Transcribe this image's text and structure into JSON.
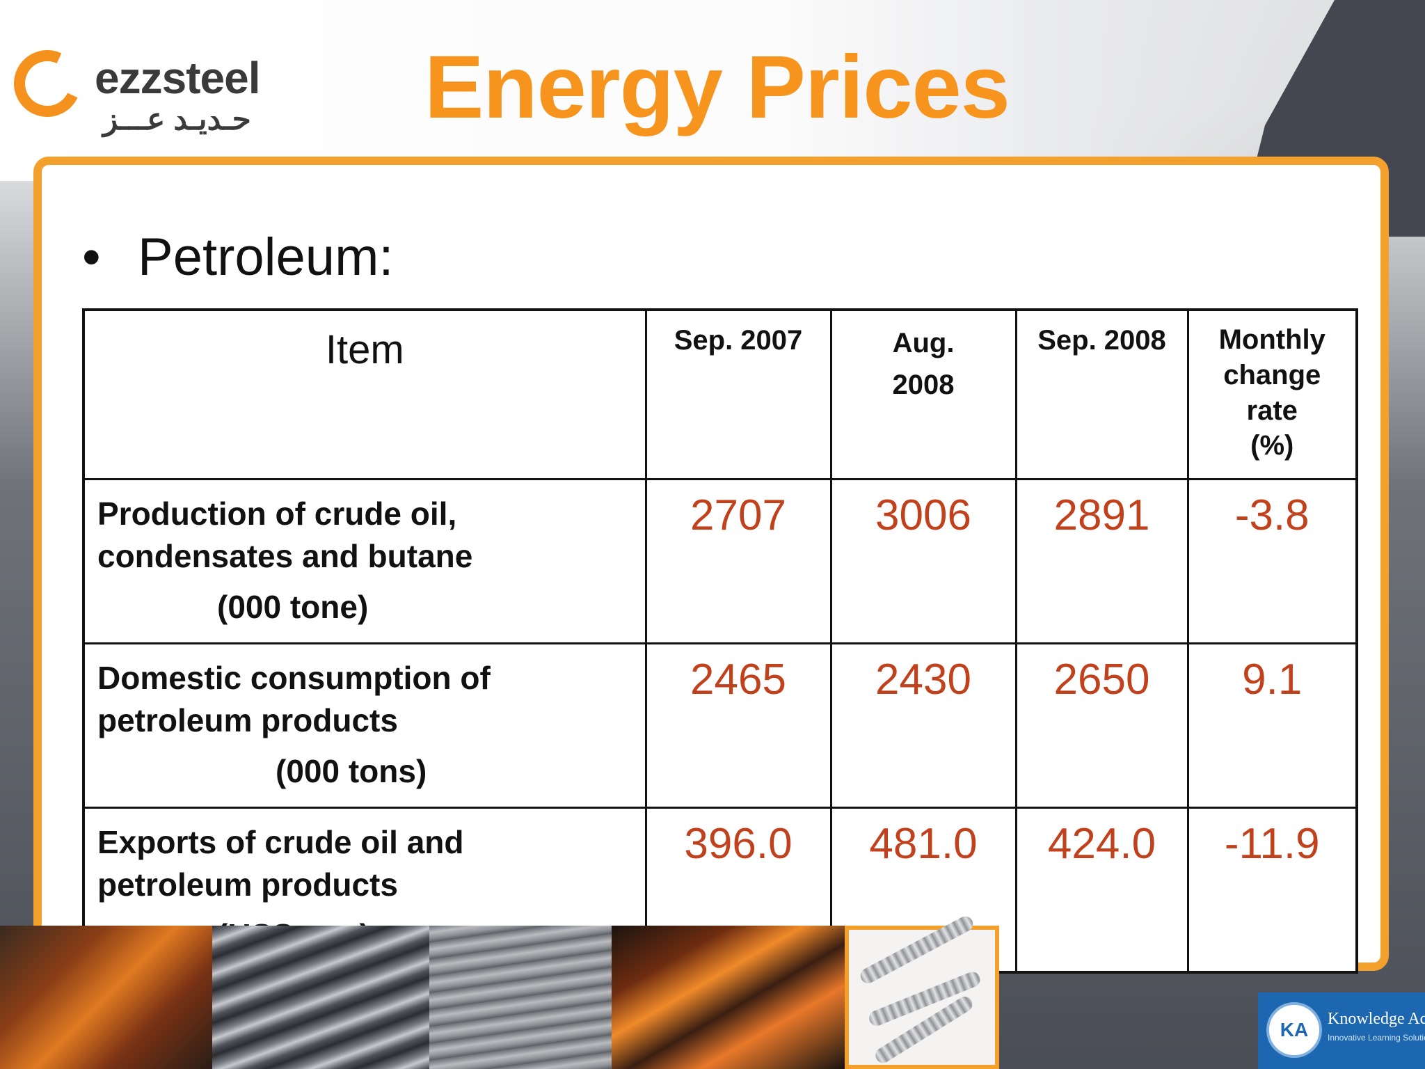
{
  "logo": {
    "name": "ezzsteel",
    "arabic": "حـديـد عـــز"
  },
  "slide": {
    "title": "Energy Prices",
    "bullet": "Petroleum:"
  },
  "table": {
    "header": {
      "item": "Item",
      "col1": "Sep. 2007",
      "col2_line1": "Aug.",
      "col2_line2": "2008",
      "col3": "Sep. 2008",
      "col4_line1": "Monthly",
      "col4_line2": "change",
      "col4_line3": "rate",
      "col4_line4": "(%)"
    },
    "rows": [
      {
        "item_line1": "Production of crude oil,",
        "item_line2": "condensates and butane",
        "unit": "(000 tone)",
        "sep2007": "2707",
        "aug2008": "3006",
        "sep2008": "2891",
        "change": "-3.8"
      },
      {
        "item_line1": "Domestic consumption of",
        "item_line2": "petroleum products",
        "unit": "(000 tons)",
        "sep2007": "2465",
        "aug2008": "2430",
        "sep2008": "2650",
        "change": "9.1"
      },
      {
        "item_line1": "Exports of crude oil and",
        "item_line2": "petroleum products",
        "unit": "(USS m.n)",
        "sep2007": "396.0",
        "aug2008": "481.0",
        "sep2008": "424.0",
        "change": "-11.9"
      }
    ]
  },
  "badge": {
    "initials": "KA",
    "name": "Knowledge Academy",
    "tagline": "Innovative Learning Solutions"
  },
  "colors": {
    "title": "#f7941d",
    "accent_border": "#f3a12c",
    "value_text": "#c1411d"
  }
}
